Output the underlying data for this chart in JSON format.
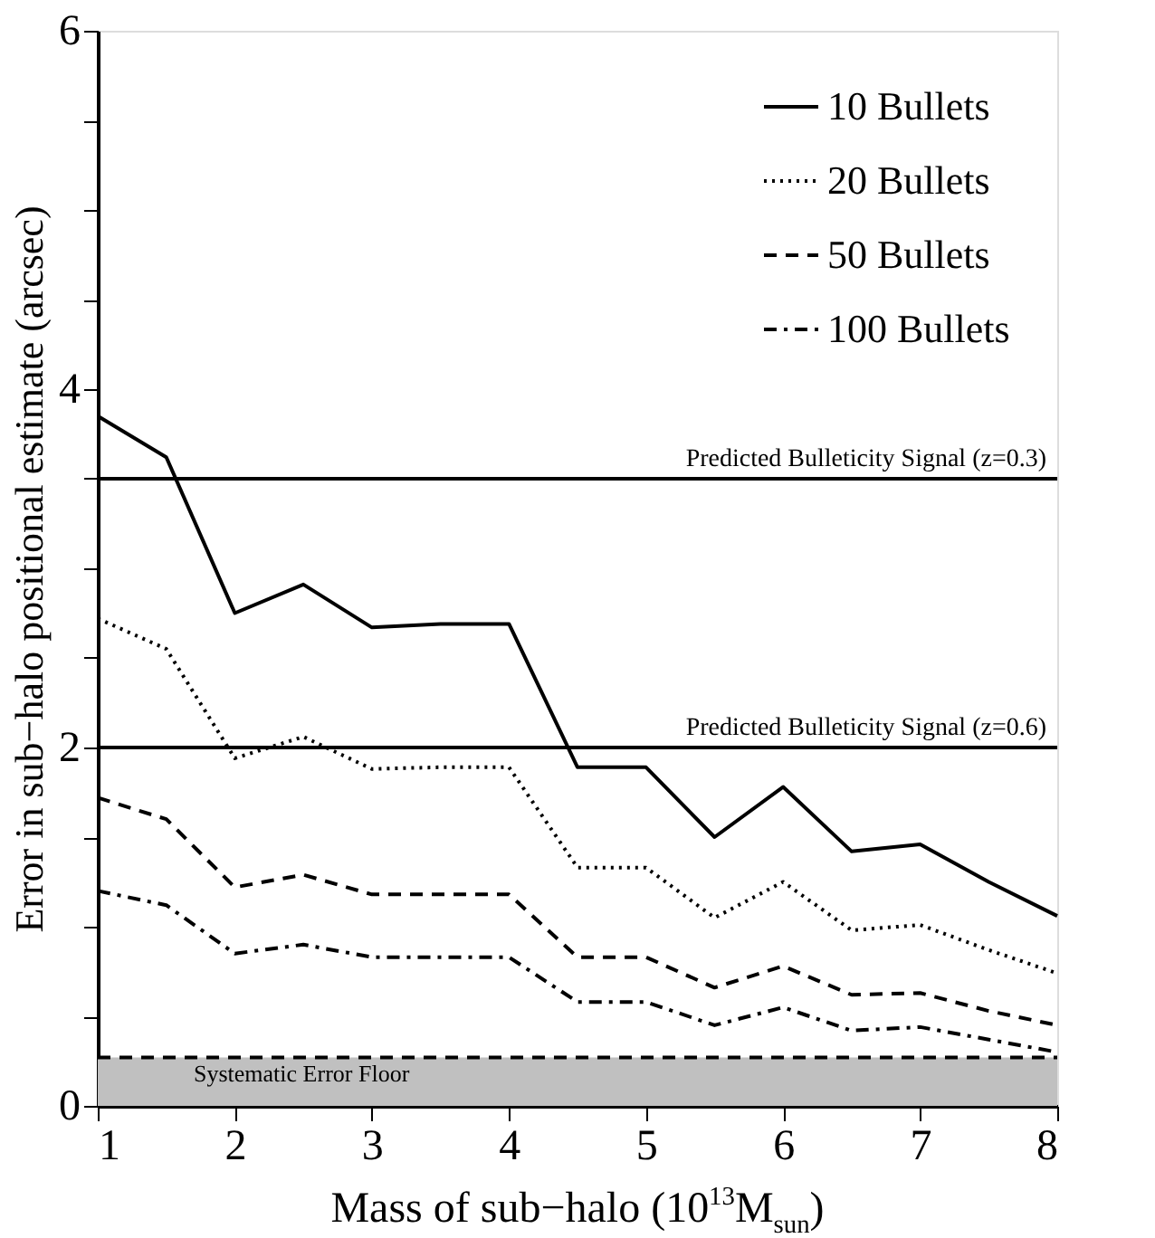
{
  "chart_data": {
    "type": "line",
    "xlabel": "Mass of sub−halo (10$^{13}$M$_{sun}$)",
    "ylabel": "Error in sub−halo positional estimate (arcsec)",
    "x": [
      1,
      1.5,
      2,
      2.5,
      3,
      3.5,
      4,
      4.5,
      5,
      5.5,
      6,
      6.5,
      7,
      7.5,
      8
    ],
    "series": [
      {
        "name": "10 Bullets",
        "color": "#000000",
        "line_style": "solid",
        "values": [
          3.85,
          3.62,
          2.75,
          2.91,
          2.67,
          2.69,
          2.69,
          1.89,
          1.89,
          1.5,
          1.78,
          1.42,
          1.46,
          1.25,
          1.06
        ]
      },
      {
        "name": "20 Bullets",
        "color": "#000000",
        "line_style": "dotted",
        "values": [
          2.72,
          2.55,
          1.94,
          2.06,
          1.88,
          1.89,
          1.89,
          1.33,
          1.33,
          1.05,
          1.25,
          0.98,
          1.01,
          0.87,
          0.74
        ]
      },
      {
        "name": "50 Bullets",
        "color": "#000000",
        "line_style": "dashed",
        "values": [
          1.72,
          1.6,
          1.22,
          1.29,
          1.18,
          1.18,
          1.18,
          0.83,
          0.83,
          0.66,
          0.78,
          0.62,
          0.63,
          0.53,
          0.45
        ]
      },
      {
        "name": "100 Bullets",
        "color": "#000000",
        "line_style": "dashdot",
        "values": [
          1.2,
          1.12,
          0.85,
          0.9,
          0.83,
          0.83,
          0.83,
          0.58,
          0.58,
          0.45,
          0.55,
          0.42,
          0.44,
          0.37,
          0.3
        ]
      }
    ],
    "xlim": [
      1,
      8
    ],
    "ylim": [
      0,
      6
    ],
    "xticks": [
      1,
      2,
      3,
      4,
      5,
      6,
      7,
      8
    ],
    "yticks": [
      0,
      {
        "value": 0.5,
        "label": null
      },
      {
        "value": 1,
        "label": null
      },
      {
        "value": 1.5,
        "label": null
      },
      2,
      {
        "value": 2.5,
        "label": null
      },
      {
        "value": 3,
        "label": null
      },
      {
        "value": 3.5,
        "label": null
      },
      4,
      {
        "value": 4.5,
        "label": null
      },
      {
        "value": 5,
        "label": null
      },
      {
        "value": 5.5,
        "label": null
      },
      6
    ],
    "annotations": [
      {
        "text": "Predicted Bulleticity Signal (z=0.3)",
        "x": 8,
        "y": 3.5
      },
      {
        "text": "Predicted Bulleticity Signal (z=0.6)",
        "x": 8,
        "y": 2
      }
    ],
    "ref_lines": [
      {
        "axis": "y",
        "value": 3.5,
        "label": null,
        "color": "#000000",
        "line_style": "solid"
      },
      {
        "axis": "y",
        "value": 2,
        "label": null,
        "color": "#000000",
        "line_style": "solid"
      },
      {
        "axis": "y",
        "value": 0.27,
        "label": null,
        "color": "#000000",
        "line_style": "dashed"
      }
    ],
    "bands": [
      {
        "axis": "y",
        "from": 0,
        "to": 0.27,
        "label": "Systematic Error Floor",
        "color": "#c0c0c0"
      }
    ],
    "legend": "top right",
    "grid": false,
    "marker": "none"
  }
}
